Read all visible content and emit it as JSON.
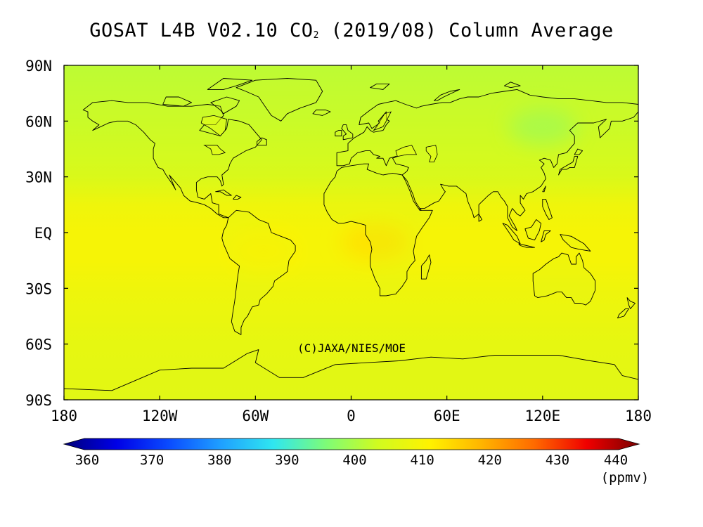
{
  "title": {
    "prefix": "GOSAT L4B V02.10 CO",
    "subscript": "2",
    "suffix": " (2019/08) Column Average"
  },
  "map": {
    "credit": "(C)JAXA/NIES/MOE",
    "lat_labels": [
      "90N",
      "60N",
      "30N",
      "EQ",
      "30S",
      "60S",
      "90S"
    ],
    "lon_labels": [
      "180",
      "120W",
      "60W",
      "0",
      "60E",
      "120E",
      "180"
    ],
    "lat_values": [
      90,
      60,
      30,
      0,
      -30,
      -60,
      -90
    ],
    "lon_values": [
      -180,
      -120,
      -60,
      0,
      60,
      120,
      180
    ],
    "ocean_color": "#f0fe10",
    "land_color": "#d9f820",
    "coast_color": "#000000"
  },
  "colorbar": {
    "tick_labels": [
      "360",
      "370",
      "380",
      "390",
      "400",
      "410",
      "420",
      "430",
      "440"
    ],
    "tick_values": [
      360,
      370,
      380,
      390,
      400,
      410,
      420,
      430,
      440
    ],
    "min": 360,
    "max": 440,
    "unit": "(ppmv)",
    "colors": [
      "#00007a",
      "#0000e6",
      "#0a4bff",
      "#1fa0ff",
      "#2fe6f0",
      "#7dfc78",
      "#d0fb20",
      "#fff200",
      "#ffb400",
      "#ff6a00",
      "#f00000",
      "#7a0000"
    ]
  },
  "chart_data": {
    "type": "heatmap",
    "title": "GOSAT L4B V02.10 CO2 (2019/08) Column Average",
    "unit": "ppmv",
    "xlim": [
      -180,
      180
    ],
    "ylim": [
      -90,
      90
    ],
    "colorscale_range": [
      360,
      440
    ],
    "latitude_band_means": [
      {
        "lat": 90,
        "value": 402
      },
      {
        "lat": 60,
        "value": 403
      },
      {
        "lat": 30,
        "value": 405
      },
      {
        "lat": 15,
        "value": 408.5
      },
      {
        "lat": 0,
        "value": 409.5
      },
      {
        "lat": -15,
        "value": 409.5
      },
      {
        "lat": -30,
        "value": 408.5
      },
      {
        "lat": -60,
        "value": 407
      },
      {
        "lat": -90,
        "value": 406.5
      }
    ],
    "anomalies": [
      {
        "lon": 120,
        "lat": 57,
        "value": 399
      },
      {
        "lon": 15,
        "lat": -5,
        "value": 413
      },
      {
        "lon": -55,
        "lat": -10,
        "value": 411
      }
    ]
  }
}
